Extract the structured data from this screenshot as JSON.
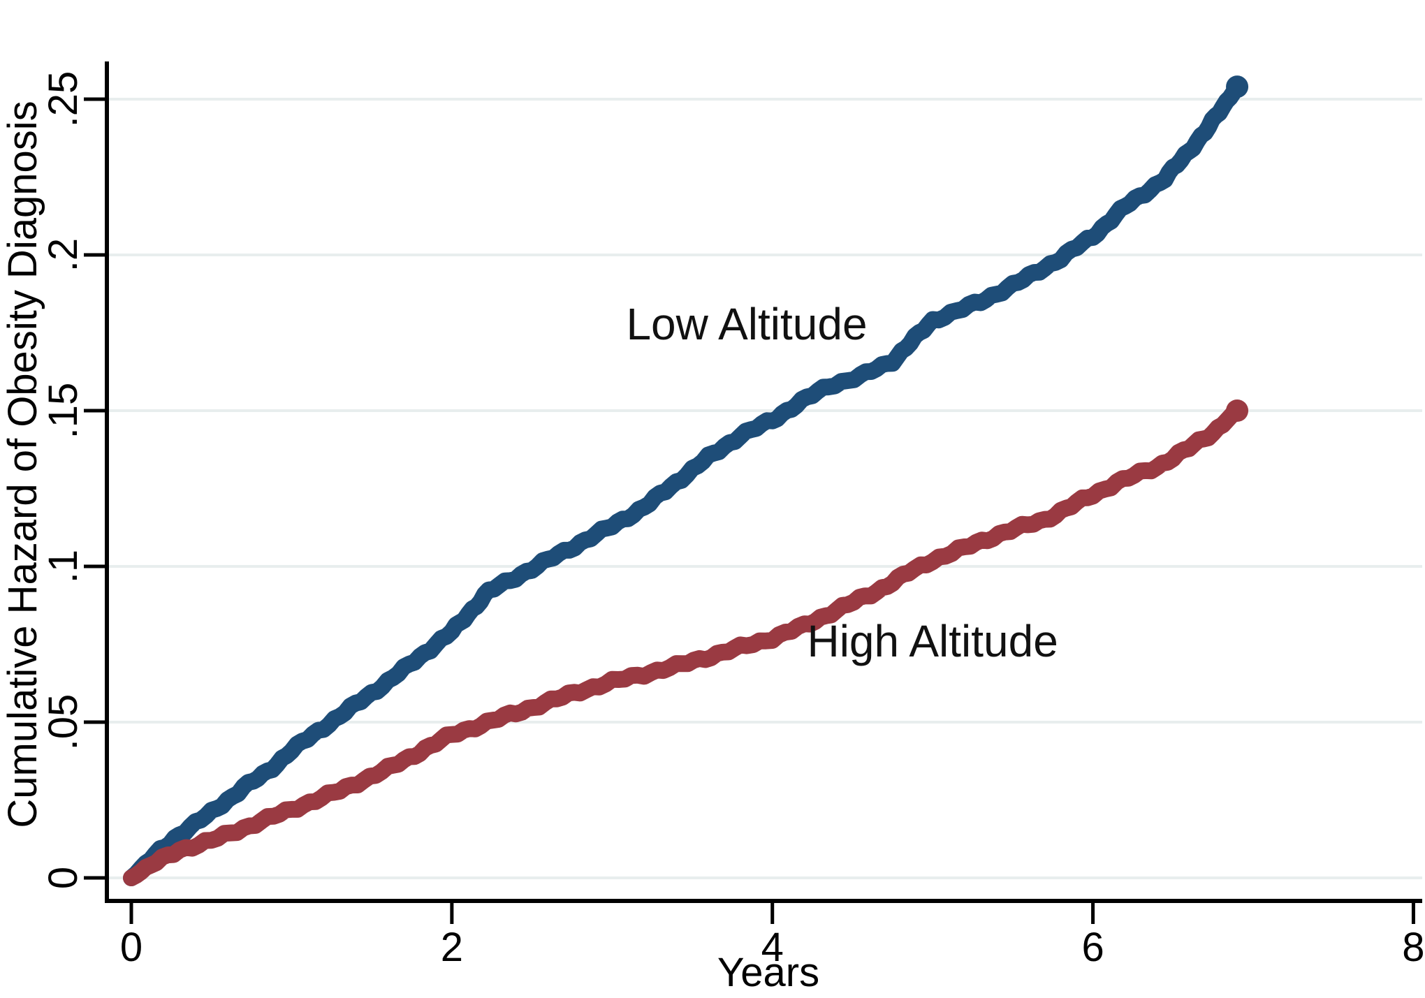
{
  "figure": {
    "background": "#ffffff",
    "text_color": "#000000"
  },
  "chart_data": {
    "type": "line",
    "title": "",
    "xlabel": "Years",
    "ylabel": "Cumulative Hazard of Obesity Diagnosis",
    "xlim": [
      0,
      8.05
    ],
    "ylim": [
      0,
      0.262
    ],
    "grid": true,
    "grid_color": "#e8eeee",
    "axis_color": "#000000",
    "x_ticks": [
      0,
      2,
      4,
      6,
      8
    ],
    "x_tick_labels": [
      "0",
      "2",
      "4",
      "6",
      "8"
    ],
    "y_ticks": [
      0,
      0.05,
      0.1,
      0.15,
      0.2,
      0.25
    ],
    "y_tick_labels": [
      "0",
      ".05",
      ".1",
      ".15",
      ".2",
      ".25"
    ],
    "legend_position": "inline-annotations",
    "series": [
      {
        "name": "Low Altitude",
        "color": "#1e4d78",
        "label_x": 3.84,
        "label_y": 0.178,
        "x": [
          0,
          0.12,
          0.3,
          0.5,
          0.7,
          0.85,
          1.0,
          1.3,
          1.6,
          1.8,
          2.0,
          2.23,
          2.6,
          3.0,
          3.2,
          3.4,
          3.6,
          3.8,
          4.0,
          4.15,
          4.35,
          4.55,
          4.75,
          5.0,
          5.3,
          5.6,
          5.8,
          6.0,
          6.2,
          6.45,
          6.7,
          6.9
        ],
        "y": [
          0,
          0.006,
          0.014,
          0.021,
          0.029,
          0.034,
          0.041,
          0.052,
          0.063,
          0.071,
          0.079,
          0.092,
          0.102,
          0.113,
          0.119,
          0.127,
          0.135,
          0.142,
          0.147,
          0.152,
          0.158,
          0.161,
          0.166,
          0.179,
          0.185,
          0.193,
          0.199,
          0.206,
          0.2155,
          0.2245,
          0.2395,
          0.254
        ]
      },
      {
        "name": "High Altitude",
        "color": "#9a3a42",
        "label_x": 5.0,
        "label_y": 0.0762,
        "x": [
          0,
          0.12,
          0.3,
          0.5,
          0.7,
          0.85,
          1.0,
          1.3,
          1.6,
          2.0,
          2.4,
          2.8,
          3.0,
          3.4,
          3.8,
          4.0,
          4.2,
          4.4,
          4.65,
          4.85,
          5.0,
          5.2,
          5.45,
          5.7,
          6.0,
          6.15,
          6.4,
          6.6,
          6.75,
          6.9
        ],
        "y": [
          0,
          0.004,
          0.009,
          0.012,
          0.016,
          0.019,
          0.022,
          0.028,
          0.035,
          0.046,
          0.053,
          0.06,
          0.063,
          0.068,
          0.074,
          0.077,
          0.081,
          0.086,
          0.092,
          0.098,
          0.102,
          0.106,
          0.111,
          0.115,
          0.123,
          0.127,
          0.132,
          0.138,
          0.143,
          0.15
        ]
      }
    ]
  }
}
